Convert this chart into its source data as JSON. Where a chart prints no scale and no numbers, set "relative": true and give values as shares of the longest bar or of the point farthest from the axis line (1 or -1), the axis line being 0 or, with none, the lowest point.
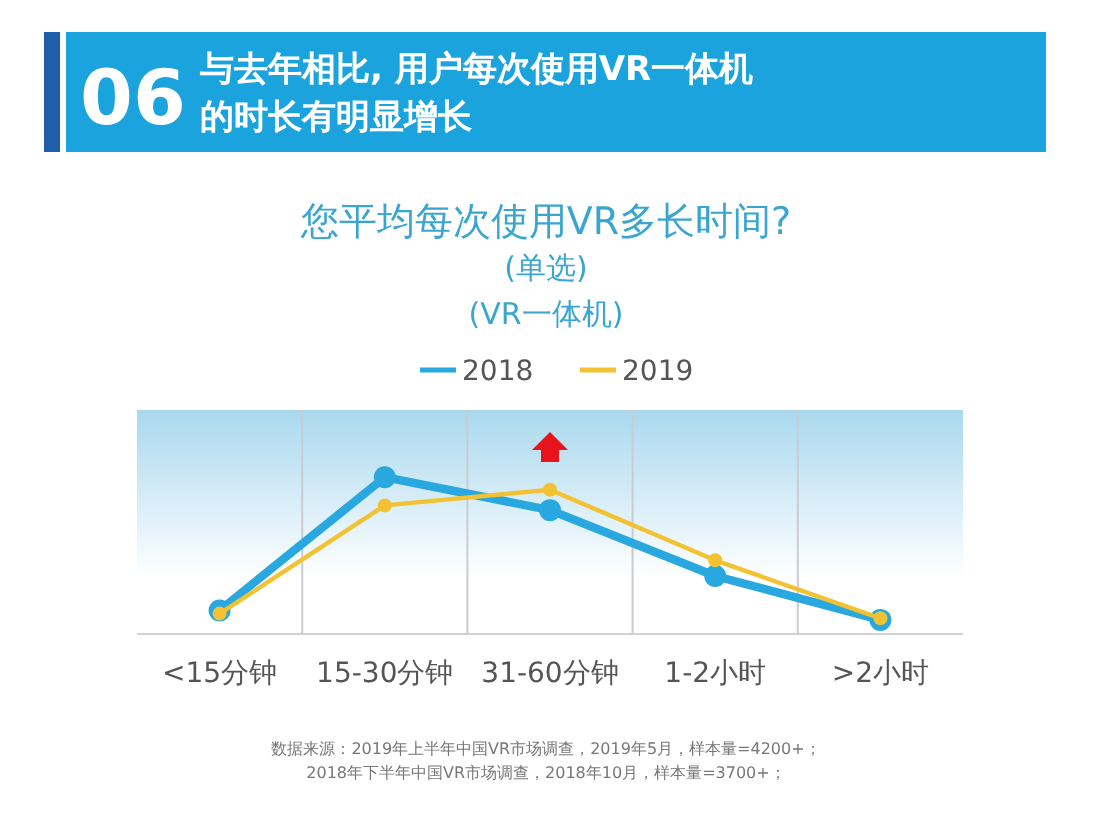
{
  "chart_data": {
    "type": "line",
    "title": "与去年相比, 用户每次使用VR一体机的时长有明显增长",
    "subtitle": "您平均每次使用VR多长时间?",
    "annotations": [
      "06",
      "(单选)",
      "(VR一体机)",
      "数据来源：2019年上半年中国VR市场调查，2019年5月，样本量=4200+；",
      "2018年下半年中国VR市场调查，2018年10月，样本量=3700+；"
    ],
    "categories": [
      "<15分钟",
      "15-30分钟",
      "31-60分钟",
      "1-2小时",
      ">2小时"
    ],
    "relative": true,
    "series": [
      {
        "name": "2018",
        "color": "#29a8e0",
        "values": [
          0.15,
          1,
          0.79,
          0.37,
          0.09
        ]
      },
      {
        "name": "2019",
        "color": "#f2c232",
        "values": [
          0.13,
          0.82,
          0.92,
          0.47,
          0.1
        ]
      }
    ],
    "marker": "circle",
    "legend": "top",
    "grid": "x"
  }
}
